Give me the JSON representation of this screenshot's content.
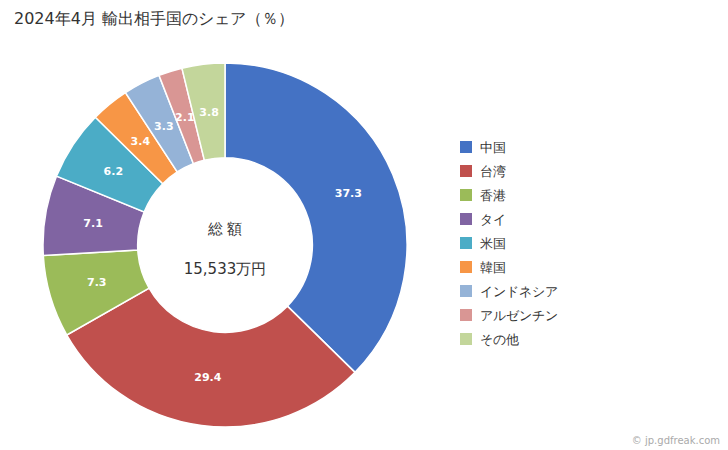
{
  "chart_data": {
    "type": "donut",
    "title": "2024年4月 輸出相手国のシェア（％）",
    "annotations": [
      "総 額",
      "15,533万円",
      "© jp.gdfreak.com"
    ],
    "categories": [
      "中国",
      "台湾",
      "香港",
      "タイ",
      "米国",
      "韓国",
      "インドネシア",
      "アルゼンチン",
      "その他"
    ],
    "values": [
      37.3,
      29.4,
      7.3,
      7.1,
      6.2,
      3.4,
      3.3,
      2.1,
      3.8
    ],
    "colors": [
      "#4472C4",
      "#C0504D",
      "#9BBB59",
      "#8064A2",
      "#4BACC6",
      "#F79646",
      "#95B3D7",
      "#D99694",
      "#C3D69B"
    ],
    "data_labels": true,
    "legend": "right"
  }
}
